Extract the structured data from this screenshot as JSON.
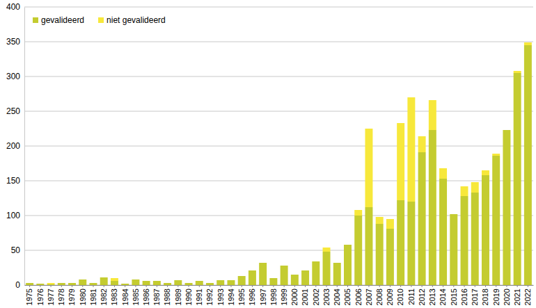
{
  "chart_data": {
    "type": "bar",
    "stacked": true,
    "grid": true,
    "legend": "top-left",
    "categories": [
      "1975",
      "1976",
      "1977",
      "1978",
      "1979",
      "1980",
      "1981",
      "1982",
      "1983",
      "1984",
      "1985",
      "1986",
      "1987",
      "1988",
      "1989",
      "1990",
      "1991",
      "1992",
      "1993",
      "1994",
      "1995",
      "1996",
      "1997",
      "1998",
      "1999",
      "2000",
      "2001",
      "2002",
      "2003",
      "2004",
      "2005",
      "2006",
      "2007",
      "2008",
      "2009",
      "2010",
      "2011",
      "2012",
      "2013",
      "2014",
      "2015",
      "2016",
      "2017",
      "2018",
      "2019",
      "2020",
      "2021",
      "2022"
    ],
    "series": [
      {
        "name": "gevalideerd",
        "color": "#c4cc30",
        "values": [
          3,
          2,
          1,
          3,
          3,
          8,
          3,
          11,
          6,
          2,
          8,
          6,
          6,
          3,
          7,
          3,
          6,
          3,
          7,
          7,
          13,
          21,
          32,
          10,
          28,
          15,
          21,
          34,
          48,
          32,
          58,
          100,
          112,
          88,
          81,
          122,
          120,
          191,
          223,
          153,
          102,
          128,
          133,
          158,
          186,
          223,
          305,
          345
        ]
      },
      {
        "name": "niet gevalideerd",
        "color": "#f7e83b",
        "values": [
          0,
          0,
          2,
          0,
          0,
          0,
          0,
          0,
          4,
          0,
          0,
          0,
          0,
          0,
          0,
          0,
          0,
          0,
          0,
          0,
          0,
          0,
          0,
          0,
          0,
          0,
          0,
          0,
          6,
          0,
          0,
          8,
          113,
          10,
          14,
          111,
          150,
          23,
          43,
          15,
          0,
          14,
          15,
          7,
          3,
          0,
          3,
          4
        ]
      }
    ],
    "ylim": [
      0,
      400
    ],
    "yticks": [
      0,
      50,
      100,
      150,
      200,
      250,
      300,
      350,
      400
    ]
  }
}
